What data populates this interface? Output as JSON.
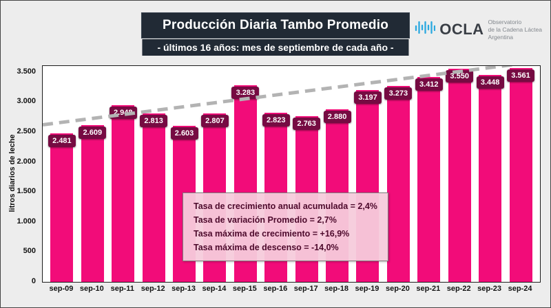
{
  "header": {
    "title": "Producción Diaria Tambo Promedio",
    "subtitle": "- últimos 16 años: mes de septiembre de cada año -"
  },
  "logo": {
    "name": "OCLA",
    "tagline_lines": [
      "Observatorio",
      "de la Cadena Láctea",
      "Argentina"
    ],
    "wave_color": "#2aa9e0"
  },
  "chart_data": {
    "type": "bar",
    "title": "Producción Diaria Tambo Promedio",
    "subtitle": "- últimos 16 años: mes de septiembre de cada año -",
    "categories": [
      "sep-09",
      "sep-10",
      "sep-11",
      "sep-12",
      "sep-13",
      "sep-14",
      "sep-15",
      "sep-16",
      "sep-17",
      "sep-18",
      "sep-19",
      "sep-20",
      "sep-21",
      "sep-22",
      "sep-23",
      "sep-24"
    ],
    "values": [
      2481,
      2609,
      2948,
      2813,
      2603,
      2807,
      3283,
      2823,
      2763,
      2880,
      3197,
      3273,
      3412,
      3550,
      3448,
      3561
    ],
    "value_labels": [
      "2.481",
      "2.609",
      "2.948",
      "2.813",
      "2.603",
      "2.807",
      "3.283",
      "2.823",
      "2.763",
      "2.880",
      "3.197",
      "3.273",
      "3.412",
      "3.550",
      "3.448",
      "3.561"
    ],
    "xlabel": "",
    "ylabel": "litros diarios de leche",
    "ylim": [
      0,
      3600
    ],
    "ytick_values": [
      3500,
      3000,
      2500,
      2000,
      1500,
      1000,
      500,
      0
    ],
    "ytick_labels": [
      "3.500",
      "3.000",
      "2.500",
      "2.000",
      "1.500",
      "1.000",
      "500",
      "0"
    ],
    "grid": false,
    "legend": "none",
    "bar_color": "#f20c79",
    "label_bg_color": "#760b42",
    "trendline": {
      "style": "dashed",
      "color": "#b3b3b3",
      "start_value": 2620,
      "end_value": 3680
    },
    "annotations": [
      "Tasa de crecimiento anual acumulada = 2,4%",
      "Tasa de variación Promedio = 2,7%",
      "Tasa máxima de crecimiento = +16,9%",
      "Tasa máxima de descenso = -14,0%"
    ]
  }
}
